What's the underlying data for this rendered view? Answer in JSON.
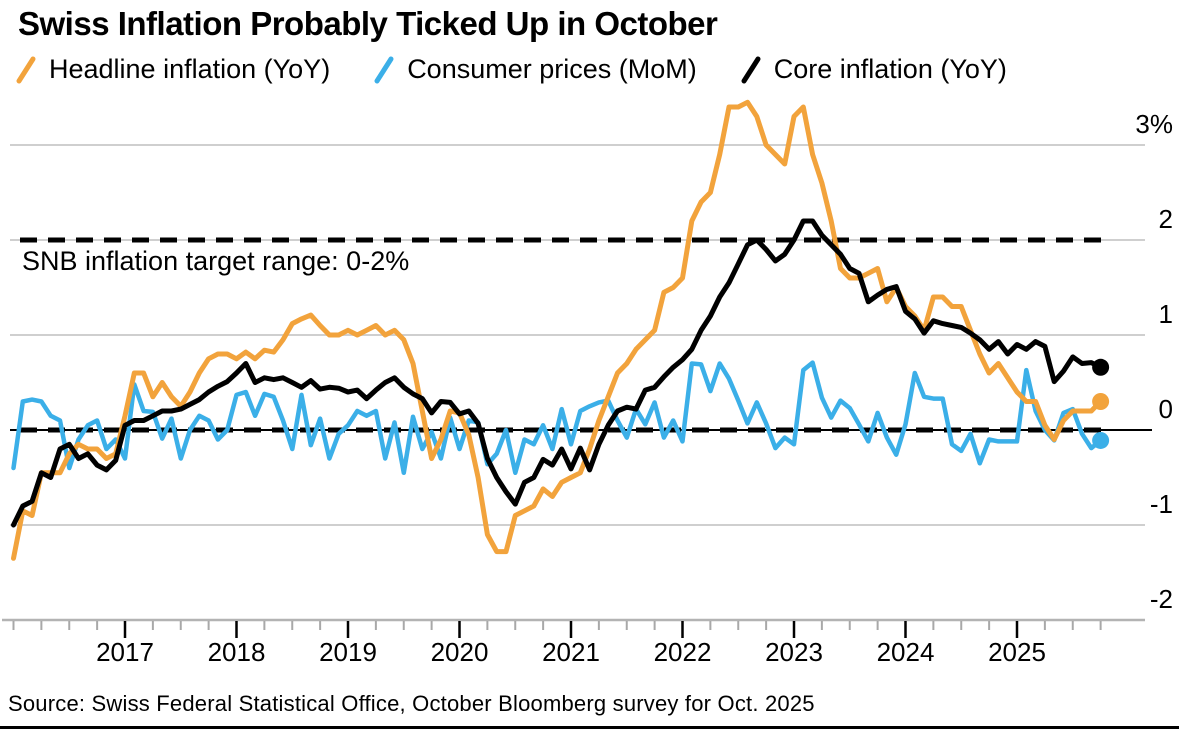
{
  "header": {
    "title": "Swiss Inflation Probably Ticked Up in October"
  },
  "annotation": {
    "snb_target_label": "SNB inflation target range: 0-2%"
  },
  "source": {
    "text": "Source: Swiss Federal Statistical Office, October Bloomberg survey for Oct. 2025"
  },
  "colors": {
    "headline": "#F2A33C",
    "consumer_mom": "#3BAFE8",
    "core": "#000000",
    "gridline": "#cfcfcf",
    "axis_baseline": "#b3b3b3",
    "text": "#000000"
  },
  "chart_data": {
    "type": "line",
    "title": "Swiss Inflation Probably Ticked Up in October",
    "frequency": "monthly",
    "x_start": "2016-01",
    "x_end": "2025-10",
    "x_tick_labels": [
      "2017",
      "2018",
      "2019",
      "2020",
      "2021",
      "2022",
      "2023",
      "2024",
      "2025"
    ],
    "y_axis": {
      "tick_values": [
        3,
        2,
        1,
        0,
        -1,
        -2
      ],
      "tick_labels": [
        "3%",
        "2",
        "1",
        "0",
        "-1",
        "-2"
      ],
      "range": [
        -2,
        3.5
      ],
      "side": "right",
      "grid": true
    },
    "reference_lines": [
      {
        "label": "SNB inflation target range: 0-2%",
        "values": [
          2,
          0
        ],
        "style": "dashed",
        "color": "#000000"
      }
    ],
    "end_point_dots": true,
    "series": [
      {
        "name": "Headline inflation (YoY)",
        "color": "#F2A33C",
        "values": [
          -1.35,
          -0.85,
          -0.9,
          -0.45,
          -0.45,
          -0.45,
          -0.25,
          -0.15,
          -0.2,
          -0.2,
          -0.3,
          -0.25,
          0.15,
          0.6,
          0.6,
          0.35,
          0.5,
          0.35,
          0.25,
          0.4,
          0.6,
          0.75,
          0.8,
          0.8,
          0.75,
          0.82,
          0.75,
          0.84,
          0.82,
          0.95,
          1.12,
          1.17,
          1.21,
          1.1,
          1.0,
          1.0,
          1.05,
          1.0,
          1.05,
          1.1,
          1.0,
          1.05,
          0.95,
          0.7,
          0.2,
          -0.3,
          -0.1,
          0.2,
          0.18,
          -0.05,
          -0.5,
          -1.1,
          -1.28,
          -1.28,
          -0.9,
          -0.85,
          -0.8,
          -0.62,
          -0.7,
          -0.55,
          -0.5,
          -0.45,
          -0.2,
          0.1,
          0.35,
          0.6,
          0.7,
          0.85,
          0.95,
          1.05,
          1.45,
          1.5,
          1.6,
          2.2,
          2.4,
          2.5,
          2.9,
          3.4,
          3.4,
          3.45,
          3.3,
          3.0,
          2.9,
          2.8,
          3.3,
          3.4,
          2.9,
          2.6,
          2.2,
          1.7,
          1.6,
          1.6,
          1.65,
          1.7,
          1.35,
          1.5,
          1.3,
          1.2,
          1.05,
          1.4,
          1.4,
          1.3,
          1.3,
          1.05,
          0.8,
          0.6,
          0.7,
          0.55,
          0.4,
          0.3,
          0.3,
          0.05,
          -0.1,
          0.1,
          0.2,
          0.2,
          0.2,
          0.3
        ]
      },
      {
        "name": "Consumer prices (MoM)",
        "color": "#3BAFE8",
        "values": [
          -0.4,
          0.3,
          0.32,
          0.3,
          0.15,
          0.1,
          -0.4,
          -0.1,
          0.05,
          0.1,
          -0.2,
          -0.1,
          -0.3,
          0.48,
          0.2,
          0.19,
          -0.09,
          0.12,
          -0.3,
          0.0,
          0.15,
          0.1,
          -0.1,
          0.0,
          0.37,
          0.4,
          0.15,
          0.38,
          0.35,
          0.1,
          -0.2,
          0.37,
          -0.16,
          0.12,
          -0.3,
          -0.04,
          0.05,
          0.2,
          0.15,
          0.2,
          -0.3,
          0.08,
          -0.45,
          0.14,
          -0.2,
          -0.02,
          -0.3,
          0.13,
          -0.2,
          0.1,
          0.08,
          -0.36,
          -0.25,
          0.0,
          -0.45,
          -0.1,
          -0.15,
          0.05,
          -0.2,
          0.22,
          -0.15,
          0.2,
          0.25,
          0.29,
          0.31,
          0.1,
          -0.08,
          0.22,
          0.06,
          0.29,
          -0.08,
          0.1,
          -0.12,
          0.7,
          0.69,
          0.41,
          0.7,
          0.54,
          0.31,
          0.07,
          0.29,
          0.07,
          -0.19,
          -0.08,
          -0.15,
          0.63,
          0.71,
          0.34,
          0.13,
          0.31,
          0.23,
          0.06,
          -0.12,
          0.18,
          -0.08,
          -0.26,
          0.06,
          0.6,
          0.35,
          0.33,
          0.33,
          -0.15,
          -0.22,
          -0.04,
          -0.35,
          -0.1,
          -0.12,
          -0.12,
          -0.12,
          0.63,
          0.2,
          0.0,
          -0.11,
          0.18,
          0.22,
          -0.04,
          -0.19,
          -0.11
        ]
      },
      {
        "name": "Core inflation (YoY)",
        "color": "#000000",
        "values": [
          -1.0,
          -0.8,
          -0.75,
          -0.45,
          -0.5,
          -0.2,
          -0.15,
          -0.3,
          -0.25,
          -0.37,
          -0.42,
          -0.32,
          0.05,
          0.1,
          0.1,
          0.15,
          0.2,
          0.2,
          0.22,
          0.27,
          0.32,
          0.4,
          0.46,
          0.51,
          0.6,
          0.7,
          0.5,
          0.55,
          0.53,
          0.55,
          0.5,
          0.45,
          0.52,
          0.43,
          0.45,
          0.44,
          0.4,
          0.42,
          0.33,
          0.42,
          0.5,
          0.55,
          0.45,
          0.38,
          0.33,
          0.18,
          0.3,
          0.29,
          0.17,
          0.2,
          0.07,
          -0.3,
          -0.5,
          -0.65,
          -0.78,
          -0.55,
          -0.5,
          -0.31,
          -0.37,
          -0.2,
          -0.41,
          -0.19,
          -0.42,
          -0.15,
          0.05,
          0.2,
          0.24,
          0.22,
          0.42,
          0.45,
          0.56,
          0.66,
          0.74,
          0.85,
          1.05,
          1.2,
          1.4,
          1.55,
          1.75,
          1.95,
          2.0,
          1.9,
          1.78,
          1.85,
          2.0,
          2.2,
          2.2,
          2.05,
          1.95,
          1.85,
          1.7,
          1.65,
          1.35,
          1.42,
          1.48,
          1.51,
          1.25,
          1.17,
          1.02,
          1.15,
          1.12,
          1.1,
          1.08,
          1.02,
          0.95,
          0.85,
          0.93,
          0.8,
          0.9,
          0.85,
          0.93,
          0.88,
          0.51,
          0.62,
          0.77,
          0.7,
          0.71,
          0.66
        ]
      }
    ]
  }
}
